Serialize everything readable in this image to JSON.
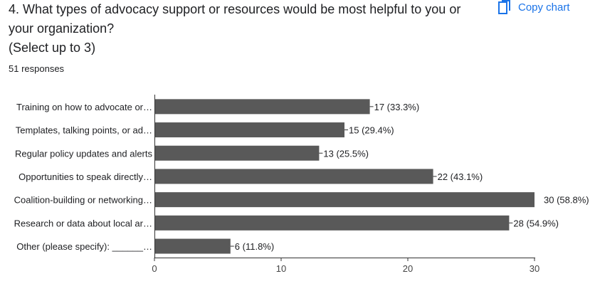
{
  "question": {
    "line1": "4. What types of advocacy support or resources would be most helpful to you or",
    "line2": "your organization?",
    "line3": "(Select up to 3)"
  },
  "responses_text": "51 responses",
  "copy_button": {
    "label": "Copy chart",
    "icon": "copy-icon",
    "color": "#1a73e8"
  },
  "colors": {
    "bar": "#595959",
    "axis": "#333333",
    "text": "#202124"
  },
  "chart_data": {
    "type": "bar",
    "orientation": "horizontal",
    "categories": [
      "Training on how to advocate or…",
      "Templates, talking points, or ad…",
      "Regular policy updates and alerts",
      "Opportunities to speak directly…",
      "Coalition-building or networking…",
      "Research or data about local ar…",
      "Other (please specify): ______…"
    ],
    "values": [
      17,
      15,
      13,
      22,
      30,
      28,
      6
    ],
    "data_labels": [
      "17 (33.3%)",
      "15 (29.4%)",
      "13 (25.5%)",
      "22 (43.1%)",
      "30 (58.8%)",
      "28 (54.9%)",
      "6 (11.8%)"
    ],
    "xlim": [
      0,
      30
    ],
    "xticks": [
      0,
      10,
      20,
      30
    ],
    "xlabel": "",
    "ylabel": "",
    "grid": false,
    "legend": "none"
  }
}
